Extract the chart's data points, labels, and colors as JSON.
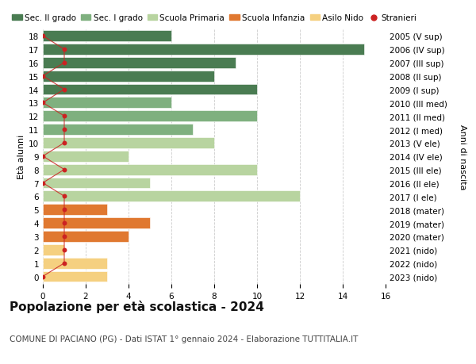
{
  "title": "Popolazione per età scolastica - 2024",
  "subtitle": "COMUNE DI PACIANO (PG) - Dati ISTAT 1° gennaio 2024 - Elaborazione TUTTITALIA.IT",
  "ylabel_left": "Età alunni",
  "ylabel_right": "Anni di nascita",
  "ages": [
    18,
    17,
    16,
    15,
    14,
    13,
    12,
    11,
    10,
    9,
    8,
    7,
    6,
    5,
    4,
    3,
    2,
    1,
    0
  ],
  "right_labels": [
    "2005 (V sup)",
    "2006 (IV sup)",
    "2007 (III sup)",
    "2008 (II sup)",
    "2009 (I sup)",
    "2010 (III med)",
    "2011 (II med)",
    "2012 (I med)",
    "2013 (V ele)",
    "2014 (IV ele)",
    "2015 (III ele)",
    "2016 (II ele)",
    "2017 (I ele)",
    "2018 (mater)",
    "2019 (mater)",
    "2020 (mater)",
    "2021 (nido)",
    "2022 (nido)",
    "2023 (nido)"
  ],
  "bar_values": [
    6,
    15,
    9,
    8,
    10,
    6,
    10,
    7,
    8,
    4,
    10,
    5,
    12,
    3,
    5,
    4,
    1,
    3,
    3
  ],
  "bar_colors": [
    "#4a7c52",
    "#4a7c52",
    "#4a7c52",
    "#4a7c52",
    "#4a7c52",
    "#7fb07f",
    "#7fb07f",
    "#7fb07f",
    "#b8d4a0",
    "#b8d4a0",
    "#b8d4a0",
    "#b8d4a0",
    "#b8d4a0",
    "#e07830",
    "#e07830",
    "#e07830",
    "#f5d080",
    "#f5d080",
    "#f5d080"
  ],
  "stranieri_x": [
    0,
    1,
    1,
    0,
    1,
    0,
    1,
    1,
    1,
    0,
    1,
    0,
    1,
    1,
    1,
    1,
    1,
    1,
    0
  ],
  "legend_items": [
    {
      "label": "Sec. II grado",
      "color": "#4a7c52"
    },
    {
      "label": "Sec. I grado",
      "color": "#7fb07f"
    },
    {
      "label": "Scuola Primaria",
      "color": "#b8d4a0"
    },
    {
      "label": "Scuola Infanzia",
      "color": "#e07830"
    },
    {
      "label": "Asilo Nido",
      "color": "#f5d080"
    },
    {
      "label": "Stranieri",
      "color": "#cc2222"
    }
  ],
  "xlim": [
    0,
    16
  ],
  "xticks": [
    0,
    2,
    4,
    6,
    8,
    10,
    12,
    14,
    16
  ],
  "ylim": [
    -0.55,
    18.55
  ],
  "background_color": "#ffffff",
  "grid_color": "#cccccc",
  "bar_height": 0.82,
  "title_fontsize": 11,
  "subtitle_fontsize": 7.5,
  "tick_fontsize": 7.5,
  "legend_fontsize": 7.5,
  "axis_label_fontsize": 8
}
